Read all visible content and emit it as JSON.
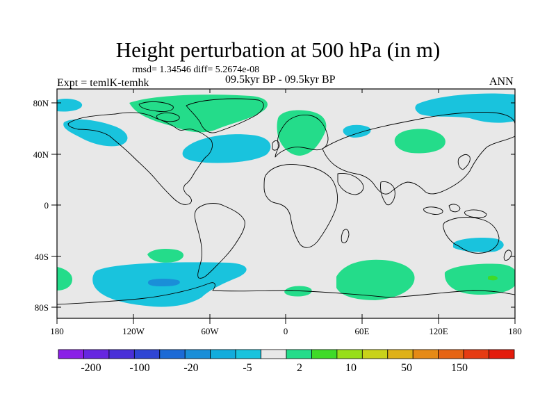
{
  "header": {
    "title": "Height perturbation at 500 hPa (in m)",
    "stats": "rmsd= 1.34546 diff= 5.2674e-08",
    "experiment": "Expt = temlK-temhk",
    "period": "09.5kyr BP - 09.5kyr BP",
    "season": "ANN"
  },
  "axes": {
    "lat_ticks": [
      "80N",
      "40N",
      "0",
      "40S",
      "80S"
    ],
    "lon_ticks": [
      "180",
      "120W",
      "60W",
      "0",
      "60E",
      "120E",
      "180"
    ]
  },
  "colorbar": {
    "colors": [
      "#8a1fe6",
      "#6626e0",
      "#4a30d8",
      "#2f45d4",
      "#1c6ad6",
      "#1a8ed8",
      "#12acdc",
      "#19c3dd",
      "#e8e8e8",
      "#24dc8a",
      "#3fda28",
      "#97de1a",
      "#c9d21a",
      "#dfb117",
      "#e58a16",
      "#e56414",
      "#e53b12",
      "#e41c0c"
    ],
    "labels": [
      "-200",
      "-100",
      "-20",
      "-5",
      "2",
      "10",
      "50",
      "150"
    ]
  },
  "legend_colors": {
    "positive": "#24dc8a",
    "negative": "#19c3dd",
    "neutral": "#e8e8e8"
  }
}
